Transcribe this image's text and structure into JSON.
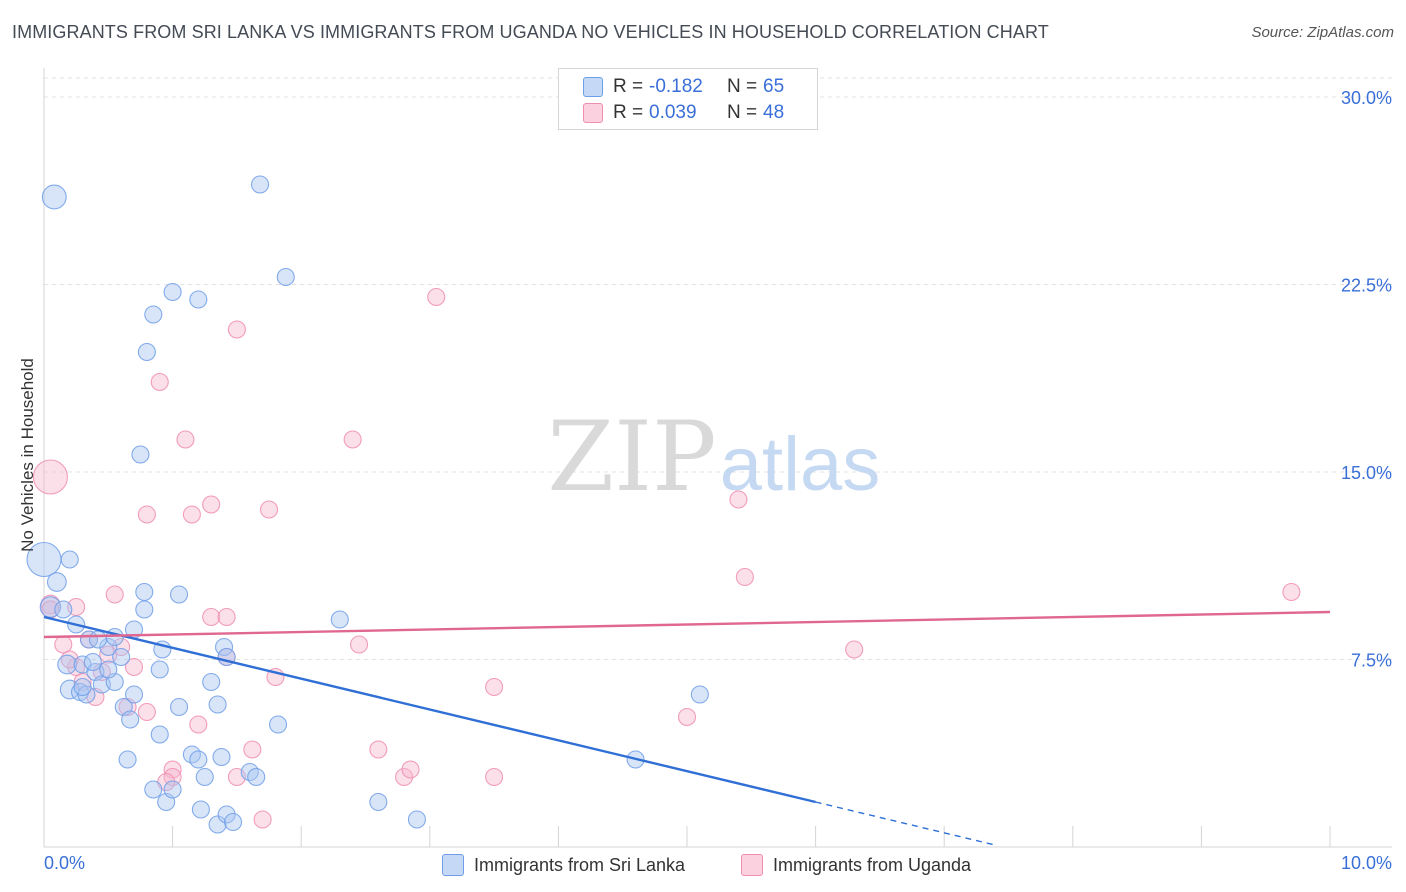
{
  "title": "IMMIGRANTS FROM SRI LANKA VS IMMIGRANTS FROM UGANDA NO VEHICLES IN HOUSEHOLD CORRELATION CHART",
  "source": "Source: ZipAtlas.com",
  "watermark": {
    "zip": "ZIP",
    "atlas": "atlas"
  },
  "legend": {
    "series1": {
      "r_label": "R =",
      "r_value": "-0.182",
      "n_label": "N =",
      "n_value": "65"
    },
    "series2": {
      "r_label": "R =",
      "r_value": "0.039",
      "n_label": "N =",
      "n_value": "48"
    }
  },
  "chart_data": {
    "type": "scatter",
    "title": "IMMIGRANTS FROM SRI LANKA VS IMMIGRANTS FROM UGANDA NO VEHICLES IN HOUSEHOLD CORRELATION CHART",
    "xlabel": "",
    "ylabel": "No Vehicles in Household",
    "xlim": [
      0,
      10
    ],
    "ylim": [
      0,
      30
    ],
    "x_tick_labels": [
      "0.0%",
      "10.0%"
    ],
    "y_ticks": [
      7.5,
      15.0,
      22.5,
      30.0
    ],
    "y_tick_labels": [
      "7.5%",
      "15.0%",
      "22.5%",
      "30.0%"
    ],
    "grid": true,
    "legend_position": "top-center",
    "colors": {
      "sri_lanka": "#6f9ee8",
      "uganda": "#f08db0",
      "sri_lanka_line": "#2f6fd6",
      "uganda_line": "#e06890",
      "axis_label": "#3a6fd8"
    },
    "series": [
      {
        "name": "Immigrants from Sri Lanka",
        "color": "#6f9ee8",
        "r": -0.182,
        "n": 65,
        "trend": {
          "x0": 0.0,
          "y0": 9.2,
          "x1": 6.0,
          "y1": 1.8,
          "dash_to_x": 7.4
        },
        "points": [
          [
            0.0,
            11.5,
            2
          ],
          [
            0.08,
            26.0,
            1.4
          ],
          [
            0.1,
            10.6,
            1.1
          ],
          [
            0.05,
            9.6,
            1.2
          ],
          [
            0.15,
            9.5,
            1
          ],
          [
            0.2,
            11.5,
            1
          ],
          [
            0.18,
            7.3,
            1.1
          ],
          [
            0.25,
            8.9,
            1
          ],
          [
            0.3,
            7.3,
            1
          ],
          [
            0.35,
            8.3,
            1
          ],
          [
            0.4,
            7.0,
            1
          ],
          [
            0.45,
            6.5,
            1
          ],
          [
            0.2,
            6.3,
            1.1
          ],
          [
            0.28,
            6.2,
            1
          ],
          [
            0.33,
            6.1,
            1
          ],
          [
            0.5,
            8.0,
            1
          ],
          [
            0.55,
            8.4,
            1
          ],
          [
            0.6,
            7.6,
            1
          ],
          [
            0.7,
            8.7,
            1
          ],
          [
            0.75,
            15.7,
            1
          ],
          [
            0.8,
            19.8,
            1
          ],
          [
            0.85,
            21.3,
            1
          ],
          [
            1.0,
            22.2,
            1
          ],
          [
            1.2,
            21.9,
            1
          ],
          [
            0.78,
            10.2,
            1
          ],
          [
            0.78,
            9.5,
            1
          ],
          [
            1.05,
            10.1,
            1
          ],
          [
            0.9,
            7.1,
            1
          ],
          [
            0.92,
            7.9,
            1
          ],
          [
            0.7,
            6.1,
            1
          ],
          [
            0.62,
            5.6,
            1
          ],
          [
            0.67,
            5.1,
            1
          ],
          [
            0.9,
            4.5,
            1
          ],
          [
            1.05,
            5.6,
            1
          ],
          [
            1.3,
            6.6,
            1
          ],
          [
            1.35,
            5.7,
            1
          ],
          [
            1.4,
            8.0,
            1
          ],
          [
            1.42,
            7.6,
            1
          ],
          [
            1.15,
            3.7,
            1
          ],
          [
            1.2,
            3.5,
            1
          ],
          [
            1.25,
            2.8,
            1
          ],
          [
            1.38,
            3.6,
            1
          ],
          [
            1.6,
            3.0,
            1
          ],
          [
            1.65,
            2.8,
            1
          ],
          [
            0.65,
            3.5,
            1
          ],
          [
            0.85,
            2.3,
            1
          ],
          [
            0.95,
            1.8,
            1
          ],
          [
            1.0,
            2.3,
            1
          ],
          [
            1.22,
            1.5,
            1
          ],
          [
            1.35,
            0.9,
            1
          ],
          [
            1.42,
            1.3,
            1
          ],
          [
            1.47,
            1.0,
            1
          ],
          [
            1.68,
            26.5,
            1
          ],
          [
            1.88,
            22.8,
            1
          ],
          [
            1.82,
            4.9,
            1
          ],
          [
            2.3,
            9.1,
            1
          ],
          [
            2.6,
            1.8,
            1
          ],
          [
            2.9,
            1.1,
            1
          ],
          [
            4.6,
            3.5,
            1
          ],
          [
            5.1,
            6.1,
            1
          ],
          [
            0.55,
            6.6,
            1
          ],
          [
            0.5,
            7.1,
            1
          ],
          [
            0.42,
            8.3,
            1
          ],
          [
            0.38,
            7.4,
            1
          ],
          [
            0.3,
            6.4,
            1
          ]
        ]
      },
      {
        "name": "Immigrants from Uganda",
        "color": "#f08db0",
        "r": 0.039,
        "n": 48,
        "trend": {
          "x0": 0.0,
          "y0": 8.4,
          "x1": 10.0,
          "y1": 9.4
        },
        "points": [
          [
            0.05,
            14.8,
            2
          ],
          [
            0.05,
            9.7,
            1.1
          ],
          [
            0.15,
            8.1,
            1
          ],
          [
            0.25,
            9.6,
            1
          ],
          [
            0.25,
            7.2,
            1
          ],
          [
            0.3,
            6.6,
            1
          ],
          [
            0.35,
            8.3,
            1
          ],
          [
            0.4,
            6.0,
            1
          ],
          [
            0.45,
            7.0,
            1
          ],
          [
            0.5,
            7.7,
            1
          ],
          [
            0.6,
            8.0,
            1
          ],
          [
            0.55,
            10.1,
            1
          ],
          [
            0.65,
            5.6,
            1
          ],
          [
            0.7,
            7.2,
            1
          ],
          [
            0.8,
            5.4,
            1
          ],
          [
            0.9,
            18.6,
            1
          ],
          [
            1.0,
            3.1,
            1
          ],
          [
            1.0,
            2.8,
            1
          ],
          [
            1.1,
            16.3,
            1
          ],
          [
            1.15,
            13.3,
            1
          ],
          [
            1.3,
            13.7,
            1
          ],
          [
            1.2,
            4.9,
            1
          ],
          [
            1.3,
            9.2,
            1
          ],
          [
            1.42,
            9.2,
            1
          ],
          [
            1.42,
            7.6,
            1
          ],
          [
            1.5,
            2.8,
            1
          ],
          [
            1.62,
            3.9,
            1
          ],
          [
            1.5,
            20.7,
            1
          ],
          [
            1.7,
            1.1,
            1
          ],
          [
            1.75,
            13.5,
            1
          ],
          [
            1.8,
            6.8,
            1
          ],
          [
            0.8,
            13.3,
            1
          ],
          [
            2.4,
            16.3,
            1
          ],
          [
            2.45,
            8.1,
            1
          ],
          [
            2.6,
            3.9,
            1
          ],
          [
            2.8,
            2.8,
            1
          ],
          [
            2.85,
            3.1,
            1
          ],
          [
            3.05,
            22.0,
            1
          ],
          [
            3.5,
            6.4,
            1
          ],
          [
            3.5,
            2.8,
            1
          ],
          [
            5.0,
            5.2,
            1
          ],
          [
            5.4,
            13.9,
            1
          ],
          [
            5.45,
            10.8,
            1
          ],
          [
            6.3,
            7.9,
            1
          ],
          [
            9.7,
            10.2,
            1
          ],
          [
            0.05,
            9.5,
            1
          ],
          [
            0.2,
            7.5,
            1
          ],
          [
            0.95,
            2.6,
            1
          ]
        ]
      }
    ]
  },
  "bottom_legend": {
    "series1": "Immigrants from Sri Lanka",
    "series2": "Immigrants from Uganda"
  }
}
